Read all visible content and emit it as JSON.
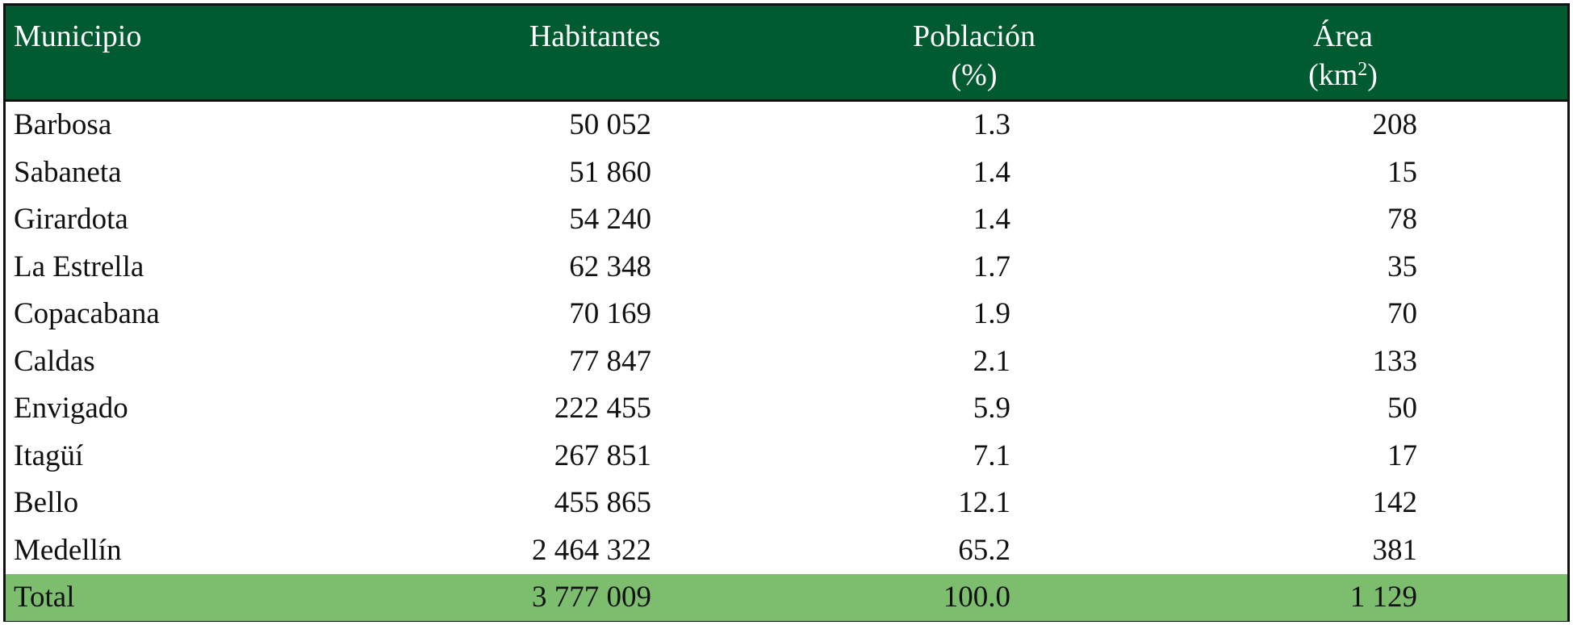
{
  "colors": {
    "header_bg": "#005b30",
    "header_text": "#ffffff",
    "total_bg": "#7dbe6e",
    "border": "#111111"
  },
  "table": {
    "headers": {
      "municipio": "Municipio",
      "habitantes": "Habitantes",
      "poblacion_line1": "Población",
      "poblacion_line2": "(%)",
      "area_line1": "Área",
      "area_line2_prefix": "(km",
      "area_line2_sup": "2",
      "area_line2_suffix": ")"
    },
    "rows": [
      {
        "municipio": "Barbosa",
        "habitantes": "50 052",
        "poblacion": "1.3",
        "area": "208"
      },
      {
        "municipio": "Sabaneta",
        "habitantes": "51 860",
        "poblacion": "1.4",
        "area": "15"
      },
      {
        "municipio": "Girardota",
        "habitantes": "54 240",
        "poblacion": "1.4",
        "area": "78"
      },
      {
        "municipio": "La Estrella",
        "habitantes": "62 348",
        "poblacion": "1.7",
        "area": "35"
      },
      {
        "municipio": "Copacabana",
        "habitantes": "70 169",
        "poblacion": "1.9",
        "area": "70"
      },
      {
        "municipio": "Caldas",
        "habitantes": "77 847",
        "poblacion": "2.1",
        "area": "133"
      },
      {
        "municipio": "Envigado",
        "habitantes": "222 455",
        "poblacion": "5.9",
        "area": "50"
      },
      {
        "municipio": "Itagüí",
        "habitantes": "267 851",
        "poblacion": "7.1",
        "area": "17"
      },
      {
        "municipio": "Bello",
        "habitantes": "455 865",
        "poblacion": "12.1",
        "area": "142"
      },
      {
        "municipio": "Medellín",
        "habitantes": "2 464 322",
        "poblacion": "65.2",
        "area": "381"
      }
    ],
    "total": {
      "municipio": "Total",
      "habitantes": "3 777 009",
      "poblacion": "100.0",
      "area": "1 129"
    }
  }
}
